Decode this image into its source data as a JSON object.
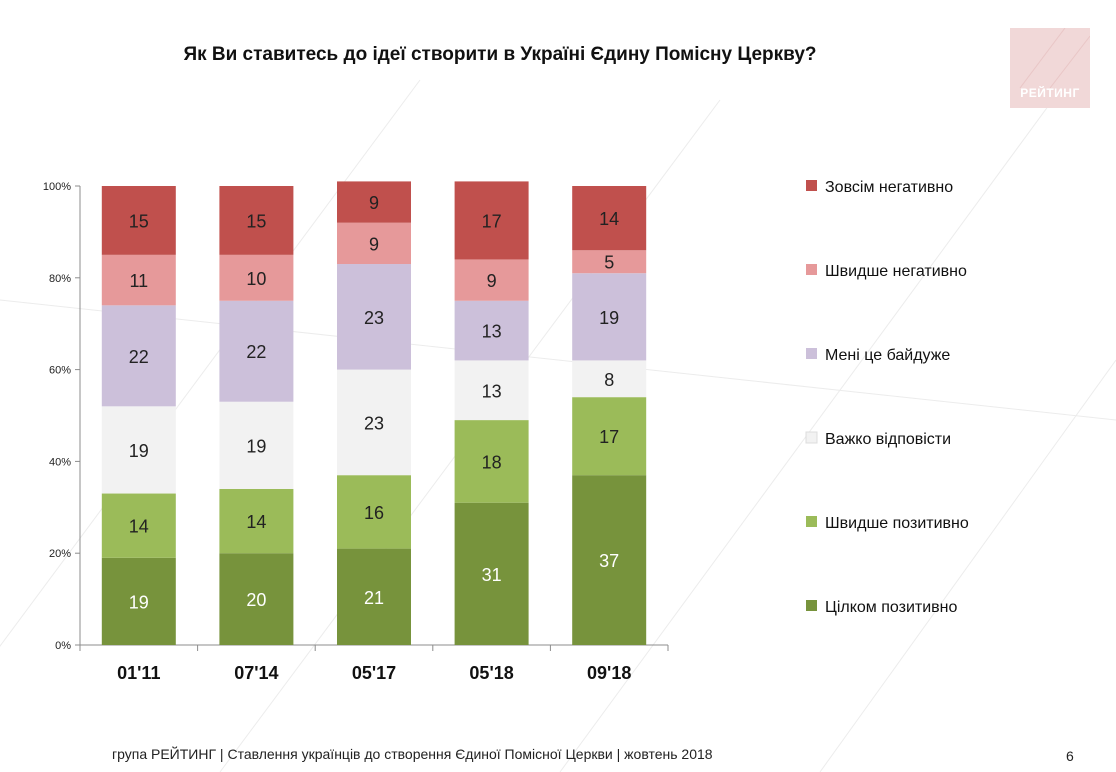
{
  "title": "Як Ви ставитесь до ідеї створити в Україні Єдину Помісну Церкву?",
  "logo": {
    "text": "РЕЙТИНГ"
  },
  "footer": "група РЕЙТИНГ | Ставлення українців до створення Єдиної Помісної Церкви | жовтень 2018",
  "page_number": "6",
  "chart_data": {
    "type": "bar",
    "stacked": true,
    "categories": [
      "01'11",
      "07'14",
      "05'17",
      "05'18",
      "09'18"
    ],
    "y_ticks": [
      "0%",
      "20%",
      "40%",
      "60%",
      "80%",
      "100%"
    ],
    "ylim": [
      0,
      100
    ],
    "legend_position": "right",
    "series": [
      {
        "name": "Цілком позитивно",
        "color": "#77933c",
        "label_color": "#ffffff",
        "values": [
          19,
          20,
          21,
          31,
          37
        ]
      },
      {
        "name": "Швидше позитивно",
        "color": "#9bbb59",
        "label_color": "#222222",
        "values": [
          14,
          14,
          16,
          18,
          17
        ]
      },
      {
        "name": "Важко відповісти",
        "color": "#f2f2f2",
        "label_color": "#222222",
        "values": [
          19,
          19,
          23,
          13,
          8
        ]
      },
      {
        "name": "Мені це байдуже",
        "color": "#ccc0da",
        "label_color": "#222222",
        "values": [
          22,
          22,
          23,
          13,
          19
        ]
      },
      {
        "name": "Швидше негативно",
        "color": "#e6999a",
        "label_color": "#222222",
        "values": [
          11,
          10,
          9,
          9,
          5
        ]
      },
      {
        "name": "Зовсім негативно",
        "color": "#c0504d",
        "label_color": "#222222",
        "values": [
          15,
          15,
          9,
          17,
          14
        ]
      }
    ]
  }
}
